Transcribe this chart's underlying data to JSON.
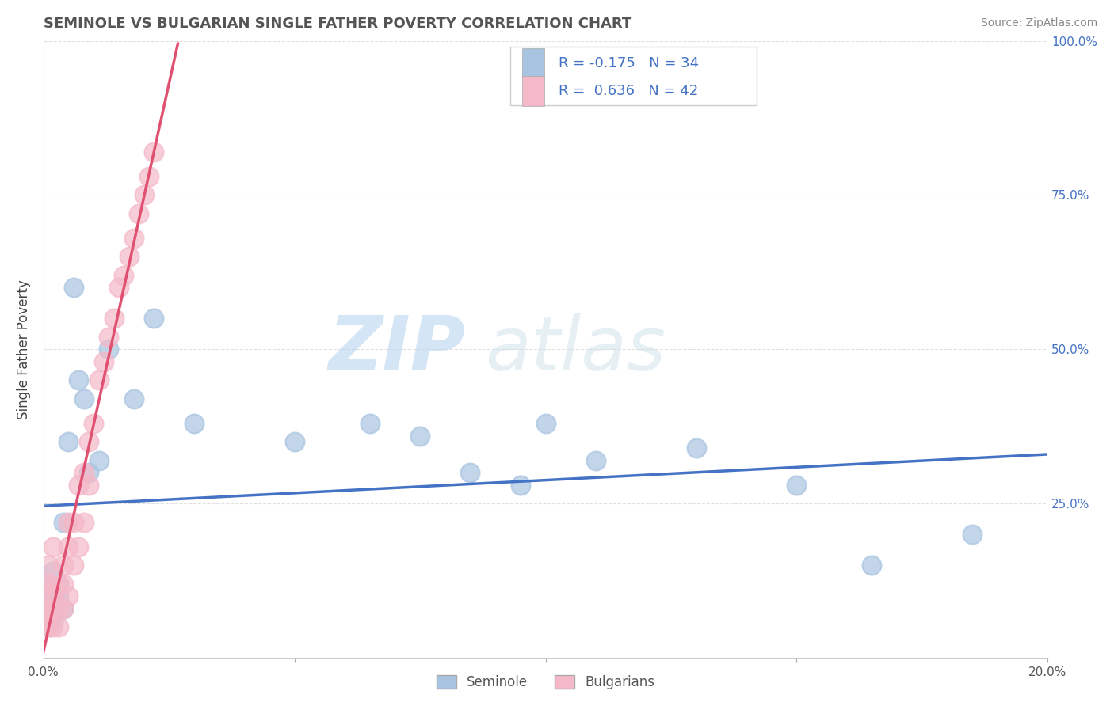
{
  "title": "SEMINOLE VS BULGARIAN SINGLE FATHER POVERTY CORRELATION CHART",
  "source": "Source: ZipAtlas.com",
  "ylabel": "Single Father Poverty",
  "xlim": [
    0.0,
    0.2
  ],
  "ylim": [
    0.0,
    1.0
  ],
  "seminole_R": -0.175,
  "seminole_N": 34,
  "bulgarian_R": 0.636,
  "bulgarian_N": 42,
  "seminole_color": "#a8c4e0",
  "bulgarian_color": "#f4b8c8",
  "seminole_line_color": "#4472c4",
  "bulgarian_line_color": "#e05070",
  "watermark_zip": "ZIP",
  "watermark_atlas": "atlas",
  "background_color": "#ffffff",
  "grid_color": "#e0e0e0",
  "legend_text_color": "#4472c4",
  "seminole_x": [
    0.001,
    0.001,
    0.001,
    0.001,
    0.002,
    0.002,
    0.002,
    0.002,
    0.002,
    0.003,
    0.003,
    0.004,
    0.004,
    0.005,
    0.006,
    0.007,
    0.008,
    0.009,
    0.011,
    0.013,
    0.018,
    0.022,
    0.03,
    0.05,
    0.065,
    0.075,
    0.085,
    0.095,
    0.1,
    0.11,
    0.13,
    0.15,
    0.165,
    0.185
  ],
  "seminole_y": [
    0.05,
    0.07,
    0.08,
    0.1,
    0.06,
    0.08,
    0.1,
    0.12,
    0.14,
    0.1,
    0.12,
    0.08,
    0.22,
    0.35,
    0.6,
    0.45,
    0.42,
    0.3,
    0.32,
    0.5,
    0.42,
    0.55,
    0.38,
    0.35,
    0.38,
    0.36,
    0.3,
    0.28,
    0.38,
    0.32,
    0.34,
    0.28,
    0.15,
    0.2
  ],
  "bulgarian_x": [
    0.001,
    0.001,
    0.001,
    0.001,
    0.001,
    0.001,
    0.001,
    0.002,
    0.002,
    0.002,
    0.002,
    0.002,
    0.003,
    0.003,
    0.003,
    0.004,
    0.004,
    0.004,
    0.005,
    0.005,
    0.005,
    0.006,
    0.006,
    0.007,
    0.007,
    0.008,
    0.008,
    0.009,
    0.009,
    0.01,
    0.011,
    0.012,
    0.013,
    0.014,
    0.015,
    0.016,
    0.017,
    0.018,
    0.019,
    0.02,
    0.021,
    0.022
  ],
  "bulgarian_y": [
    0.05,
    0.06,
    0.07,
    0.08,
    0.1,
    0.12,
    0.15,
    0.05,
    0.08,
    0.1,
    0.12,
    0.18,
    0.05,
    0.08,
    0.12,
    0.08,
    0.12,
    0.15,
    0.1,
    0.18,
    0.22,
    0.15,
    0.22,
    0.18,
    0.28,
    0.22,
    0.3,
    0.28,
    0.35,
    0.38,
    0.45,
    0.48,
    0.52,
    0.55,
    0.6,
    0.62,
    0.65,
    0.68,
    0.72,
    0.75,
    0.78,
    0.82
  ]
}
